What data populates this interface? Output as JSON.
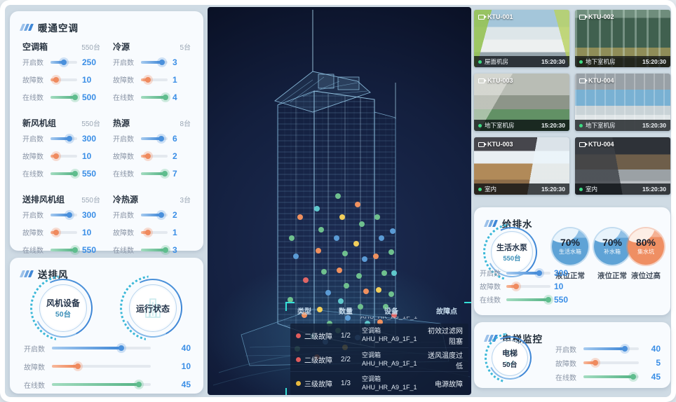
{
  "theme": {
    "accent_blue": "#3f87d6",
    "accent_orange": "#ee8354",
    "accent_green": "#55b385",
    "accent_teal": "#3bb8d8",
    "value_blue": "#3a8ee6",
    "bracket_teal": "#35e0d8",
    "fault_dot_red": "#e05c5c",
    "fault_dot_yellow": "#e8b93e",
    "camera_online_green": "#3ddc84"
  },
  "hvac": {
    "title": "暖通空调",
    "groups": [
      {
        "name": "空调箱",
        "count": "550台",
        "metrics": [
          {
            "label": "开启数",
            "value": "250",
            "pct": 50
          },
          {
            "label": "故障数",
            "value": "10",
            "pct": 20
          },
          {
            "label": "在线数",
            "value": "500",
            "pct": 92
          }
        ]
      },
      {
        "name": "冷源",
        "count": "5台",
        "metrics": [
          {
            "label": "开启数",
            "value": "3",
            "pct": 78
          },
          {
            "label": "故障数",
            "value": "1",
            "pct": 25
          },
          {
            "label": "在线数",
            "value": "4",
            "pct": 92
          }
        ]
      },
      {
        "name": "新风机组",
        "count": "550台",
        "metrics": [
          {
            "label": "开启数",
            "value": "300",
            "pct": 70
          },
          {
            "label": "故障数",
            "value": "10",
            "pct": 22
          },
          {
            "label": "在线数",
            "value": "550",
            "pct": 93
          }
        ]
      },
      {
        "name": "热源",
        "count": "8台",
        "metrics": [
          {
            "label": "开启数",
            "value": "6",
            "pct": 75
          },
          {
            "label": "故障数",
            "value": "2",
            "pct": 25
          },
          {
            "label": "在线数",
            "value": "7",
            "pct": 90
          }
        ]
      },
      {
        "name": "送排风机组",
        "count": "550台",
        "metrics": [
          {
            "label": "开启数",
            "value": "300",
            "pct": 70
          },
          {
            "label": "故障数",
            "value": "10",
            "pct": 22
          },
          {
            "label": "在线数",
            "value": "550",
            "pct": 93
          }
        ]
      },
      {
        "name": "冷热源",
        "count": "3台",
        "metrics": [
          {
            "label": "开启数",
            "value": "2",
            "pct": 75
          },
          {
            "label": "故障数",
            "value": "1",
            "pct": 25
          },
          {
            "label": "在线数",
            "value": "3",
            "pct": 92
          }
        ]
      }
    ]
  },
  "fans": {
    "title": "送排风",
    "rings": [
      {
        "line1": "风机设备",
        "line2": "50台"
      },
      {
        "line1": "运行状态",
        "line2": ""
      }
    ],
    "metrics": [
      {
        "label": "开启数",
        "value": "40",
        "pct": 70
      },
      {
        "label": "故障数",
        "value": "10",
        "pct": 26
      },
      {
        "label": "在线数",
        "value": "45",
        "pct": 88
      }
    ]
  },
  "cameras": {
    "tiles": [
      {
        "id": "KTU-001",
        "location": "屋面机房",
        "time": "15:20:30",
        "scene": "rooftop"
      },
      {
        "id": "KTU-002",
        "location": "地下室机房",
        "time": "15:20:30",
        "scene": "pumproom"
      },
      {
        "id": "KTU-003",
        "location": "地下室机房",
        "time": "15:20:30",
        "scene": "machineroom"
      },
      {
        "id": "KTU-004",
        "location": "地下室机房",
        "time": "15:20:30",
        "scene": "corridor"
      },
      {
        "id": "KTU-003",
        "location": "室内",
        "time": "15:20:30",
        "scene": "office-warm"
      },
      {
        "id": "KTU-004",
        "location": "室内",
        "time": "15:20:30",
        "scene": "office-dark"
      }
    ]
  },
  "water": {
    "title": "给排水",
    "ring": {
      "line1": "生活水泵",
      "line2": "550台"
    },
    "gauges": [
      {
        "pct": "70%",
        "name": "生活水箱",
        "status": "液位正常",
        "type": "blue"
      },
      {
        "pct": "70%",
        "name": "补水箱",
        "status": "液位正常",
        "type": "blue"
      },
      {
        "pct": "80%",
        "name": "集水坑",
        "status": "液位过高",
        "type": "orange"
      }
    ],
    "metrics": [
      {
        "label": "开启数",
        "value": "300",
        "pct": 75
      },
      {
        "label": "故障数",
        "value": "10",
        "pct": 22
      },
      {
        "label": "在线数",
        "value": "550",
        "pct": 95
      }
    ]
  },
  "elevator": {
    "title": "电梯监控",
    "ring": {
      "line1": "电梯",
      "line2": "50台"
    },
    "metrics": [
      {
        "label": "开启数",
        "value": "40",
        "pct": 75
      },
      {
        "label": "故障数",
        "value": "5",
        "pct": 22
      },
      {
        "label": "在线数",
        "value": "45",
        "pct": 90
      }
    ]
  },
  "faults": {
    "headers": [
      "类型",
      "数量",
      "设备",
      "故障点"
    ],
    "partial_device": "AHU_HR_A9_1F_1",
    "rows": [
      {
        "dot": "red",
        "level": "二级故障",
        "qty": "1/2",
        "device_type": "空调箱",
        "device_id": "AHU_HR_A9_1F_1",
        "point": "初效过滤网阻塞"
      },
      {
        "dot": "red",
        "level": "二级故障",
        "qty": "2/2",
        "device_type": "空调箱",
        "device_id": "AHU_HR_A9_1F_1",
        "point": "送风温度过低"
      },
      {
        "dot": "yellow",
        "level": "三级故障",
        "qty": "1/3",
        "device_type": "空调箱",
        "device_id": "AHU_HR_A9_1F_1",
        "point": "电源故障"
      }
    ]
  }
}
